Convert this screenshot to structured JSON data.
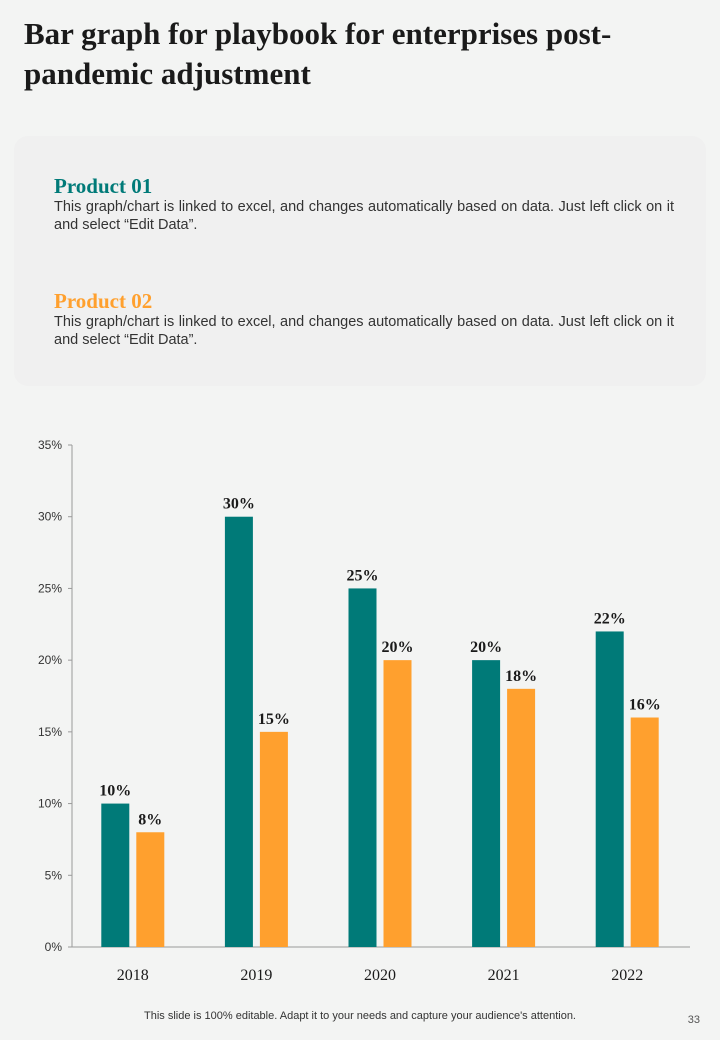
{
  "title": "Bar graph for playbook for enterprises post-pandemic adjustment",
  "legend": {
    "product1": {
      "name": "Product 01",
      "description": "This graph/chart is linked to excel, and changes automatically based on data. Just left click on it and select “Edit Data”."
    },
    "product2": {
      "name": "Product 02",
      "description": "This graph/chart is linked to excel, and changes automatically based on data. Just left click on it and select “Edit Data”."
    }
  },
  "colors": {
    "product1": "#007a78",
    "product2": "#ffa02e"
  },
  "chart_data": {
    "type": "bar",
    "title": "",
    "xlabel": "",
    "ylabel": "",
    "categories": [
      "2018",
      "2019",
      "2020",
      "2021",
      "2022"
    ],
    "series": [
      {
        "name": "Product 01",
        "values": [
          10,
          30,
          25,
          20,
          22
        ]
      },
      {
        "name": "Product 02",
        "values": [
          8,
          15,
          20,
          18,
          16
        ]
      }
    ],
    "ylim": [
      0,
      35
    ],
    "yticks": [
      0,
      5,
      10,
      15,
      20,
      25,
      30,
      35
    ],
    "ytick_labels": [
      "0%",
      "5%",
      "10%",
      "15%",
      "20%",
      "25%",
      "30%",
      "35%"
    ],
    "data_labels": [
      [
        "10%",
        "30%",
        "25%",
        "20%",
        "22%"
      ],
      [
        "8%",
        "15%",
        "20%",
        "18%",
        "16%"
      ]
    ],
    "grid": false
  },
  "footer": "This slide is 100% editable. Adapt it to your needs and capture your audience's attention.",
  "page_number": "33"
}
